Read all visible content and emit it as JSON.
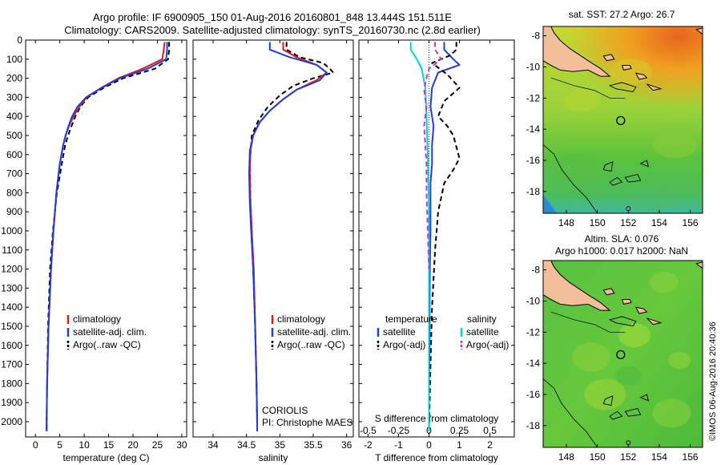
{
  "header": {
    "title_line1": "Argo profile: IF 6900905_150 01-Aug-2016 20160801_848 13.444S 151.511E",
    "title_line2": "Climatology: CARS2009. Satellite-adjusted climatology: synTS_20160730.nc (2.8d earlier)"
  },
  "side_text": "©IMOS 06-Aug-2016 20:40:36",
  "colors": {
    "climatology": "#e31a1c",
    "satellite": "#1f3fd6",
    "argo": "#000000",
    "sal_satellite": "#00d5d5",
    "sal_argo": "#cc33cc"
  },
  "chart_data": [
    {
      "type": "line",
      "name": "temperature-profile",
      "xlabel": "temperature (deg C)",
      "ylabel": "",
      "xlim": [
        -2,
        31
      ],
      "ylim": [
        2080,
        0
      ],
      "xticks": [
        0,
        5,
        10,
        15,
        20,
        25,
        30
      ],
      "yticks": [
        0,
        100,
        200,
        300,
        400,
        500,
        600,
        700,
        800,
        900,
        1000,
        1100,
        1200,
        1300,
        1400,
        1500,
        1600,
        1700,
        1800,
        1900,
        2000
      ],
      "legend": [
        "climatology",
        "satellite-adj. clim.",
        "Argo(..raw -QC)"
      ],
      "legend_position": "lower-center",
      "series": [
        {
          "name": "climatology",
          "x": [
            26.5,
            26.3,
            26.0,
            22.0,
            17.0,
            13.5,
            10.5,
            9.0,
            7.8,
            6.9,
            6.2,
            5.7,
            5.0,
            4.3,
            3.7,
            3.2,
            2.7,
            2.4,
            2.3,
            2.3
          ],
          "y": [
            10,
            50,
            100,
            150,
            200,
            250,
            300,
            350,
            400,
            450,
            500,
            550,
            650,
            800,
            1000,
            1200,
            1500,
            1800,
            2000,
            2050
          ]
        },
        {
          "name": "satellite-adj. clim.",
          "x": [
            27.0,
            27.0,
            26.8,
            23.0,
            17.3,
            13.6,
            10.4,
            8.6,
            7.5,
            6.8,
            6.2,
            5.7,
            5.0,
            4.3,
            3.7,
            3.2,
            2.7,
            2.4,
            2.3,
            2.3
          ],
          "y": [
            10,
            50,
            100,
            150,
            200,
            250,
            300,
            350,
            400,
            450,
            500,
            550,
            650,
            800,
            1000,
            1200,
            1500,
            1800,
            2000,
            2050
          ]
        },
        {
          "name": "Argo(..raw -QC)",
          "x": [
            27.4,
            27.4,
            27.2,
            24.5,
            18.0,
            14.0,
            10.8,
            9.2,
            8.2,
            7.4,
            6.7,
            6.1,
            5.4,
            4.4,
            3.6,
            3.0,
            2.6,
            2.4,
            2.3,
            2.3
          ],
          "y": [
            10,
            50,
            100,
            150,
            200,
            250,
            300,
            350,
            400,
            450,
            500,
            550,
            650,
            800,
            1000,
            1200,
            1500,
            1800,
            2000,
            2050
          ]
        }
      ]
    },
    {
      "type": "line",
      "name": "salinity-profile",
      "xlabel": "salinity",
      "ylabel": "",
      "xlim": [
        33.7,
        36.1
      ],
      "ylim": [
        2080,
        0
      ],
      "xticks": [
        34,
        34.5,
        35,
        35.5,
        36
      ],
      "xticklabels": [
        "34",
        "34.5",
        "35",
        "35.5",
        "36"
      ],
      "legend": [
        "climatology",
        "satellite-adj. clim.",
        "Argo(..raw -QC)"
      ],
      "legend_position": "lower-right",
      "annotation": [
        "CORIOLIS",
        "PI: Christophe MAES"
      ],
      "series": [
        {
          "name": "climatology",
          "x": [
            35.05,
            35.05,
            35.25,
            35.55,
            35.7,
            35.55,
            35.25,
            35.05,
            34.85,
            34.7,
            34.6,
            34.56,
            34.55,
            34.56,
            34.58,
            34.61,
            34.63,
            34.65,
            34.66,
            34.66
          ],
          "y": [
            10,
            50,
            90,
            130,
            170,
            210,
            260,
            310,
            370,
            430,
            500,
            580,
            700,
            850,
            1000,
            1200,
            1500,
            1800,
            2000,
            2050
          ]
        },
        {
          "name": "satellite-adj. clim.",
          "x": [
            34.85,
            34.85,
            35.15,
            35.55,
            35.7,
            35.6,
            35.25,
            35.05,
            34.85,
            34.7,
            34.6,
            34.55,
            34.54,
            34.55,
            34.57,
            34.6,
            34.63,
            34.65,
            34.66,
            34.66
          ],
          "y": [
            10,
            50,
            90,
            130,
            170,
            210,
            260,
            310,
            370,
            430,
            500,
            580,
            700,
            850,
            1000,
            1200,
            1500,
            1800,
            2000,
            2050
          ]
        },
        {
          "name": "Argo(..raw -QC)",
          "x": [
            35.1,
            35.1,
            35.3,
            35.65,
            35.75,
            35.8,
            35.5,
            35.2,
            35.0,
            34.82,
            34.68,
            34.58,
            34.55,
            34.56,
            34.58,
            34.6,
            34.63,
            34.65,
            34.66,
            34.66
          ],
          "y": [
            10,
            50,
            90,
            120,
            150,
            170,
            200,
            240,
            290,
            350,
            420,
            500,
            650,
            850,
            1000,
            1200,
            1500,
            1800,
            2000,
            2050
          ]
        }
      ]
    },
    {
      "type": "line",
      "name": "difference-profile",
      "xlabel": "T difference from climatology",
      "x2label": "S difference from climatology",
      "xlim": [
        -2.3,
        2.8
      ],
      "x2lim": [
        -0.575,
        0.7
      ],
      "ylim": [
        2080,
        0
      ],
      "xticks": [
        -2,
        -1,
        0,
        1,
        2
      ],
      "x2ticks": [
        -0.5,
        -0.25,
        0,
        0.25,
        0.5
      ],
      "x2ticklabels": [
        "-0.5",
        "-0.25",
        "0",
        "0.25",
        "0.5"
      ],
      "legend_temperature": {
        "title": "temperature",
        "items": [
          "satellite",
          "Argo(-adj)"
        ]
      },
      "legend_salinity": {
        "title": "salinity",
        "items": [
          "satellite",
          "Argo(-adj)"
        ]
      },
      "series": [
        {
          "name": "temperature satellite",
          "units": "T",
          "x": [
            0.5,
            0.5,
            0.8,
            1.0,
            0.3,
            0.1,
            0.05,
            0.15,
            0.1,
            0.1,
            0.05,
            0.05,
            0.05,
            0.03,
            0.02,
            0.02,
            0.0,
            0.0,
            0.0
          ],
          "y": [
            10,
            50,
            100,
            130,
            170,
            250,
            350,
            450,
            550,
            650,
            750,
            850,
            1000,
            1200,
            1400,
            1600,
            1800,
            2000,
            2050
          ]
        },
        {
          "name": "temperature Argo(-adj)",
          "units": "T",
          "x": [
            0.9,
            0.9,
            0.7,
            0.1,
            0.6,
            1.0,
            0.5,
            0.3,
            0.6,
            0.8,
            0.9,
            1.0,
            0.8,
            0.5,
            0.3,
            0.2,
            0.1,
            0.05,
            0.0
          ],
          "y": [
            10,
            50,
            80,
            120,
            180,
            250,
            320,
            400,
            450,
            500,
            560,
            620,
            680,
            750,
            900,
            1100,
            1400,
            1700,
            2050
          ]
        },
        {
          "name": "salinity satellite",
          "units": "S",
          "x": [
            -0.15,
            -0.15,
            -0.1,
            -0.06,
            -0.03,
            -0.02,
            -0.01,
            0.0,
            0.0,
            0.0,
            0.0,
            0.0
          ],
          "y": [
            10,
            50,
            100,
            150,
            250,
            400,
            600,
            900,
            1200,
            1500,
            1800,
            2050
          ]
        },
        {
          "name": "salinity Argo(-adj)",
          "units": "S",
          "x": [
            0.05,
            0.05,
            0.1,
            0.0,
            -0.02,
            -0.04,
            -0.02,
            -0.04,
            -0.03,
            -0.02,
            -0.02,
            -0.01,
            0.0
          ],
          "y": [
            10,
            50,
            100,
            150,
            200,
            260,
            350,
            450,
            550,
            650,
            800,
            1000,
            1200
          ]
        }
      ]
    },
    {
      "type": "heatmap",
      "name": "sst-map",
      "title": "sat. SST: 27.2 Argo: 26.7",
      "xlim": [
        146.5,
        156.8
      ],
      "ylim": [
        -19.4,
        -7.4
      ],
      "xticks": [
        148,
        150,
        152,
        154,
        156
      ],
      "yticks": [
        -8,
        -10,
        -12,
        -14,
        -16,
        -18
      ],
      "argo_position": {
        "lon": 151.511,
        "lat": -13.444
      }
    },
    {
      "type": "heatmap",
      "name": "sla-map",
      "title": "Altim. SLA: 0.076",
      "subtitle": "Argo h1000: 0.017 h2000: NaN",
      "xlim": [
        146.5,
        156.8
      ],
      "ylim": [
        -19.4,
        -7.4
      ],
      "xticks": [
        148,
        150,
        152,
        154,
        156
      ],
      "yticks": [
        -8,
        -10,
        -12,
        -14,
        -16,
        -18
      ],
      "argo_position": {
        "lon": 151.511,
        "lat": -13.444
      }
    }
  ]
}
